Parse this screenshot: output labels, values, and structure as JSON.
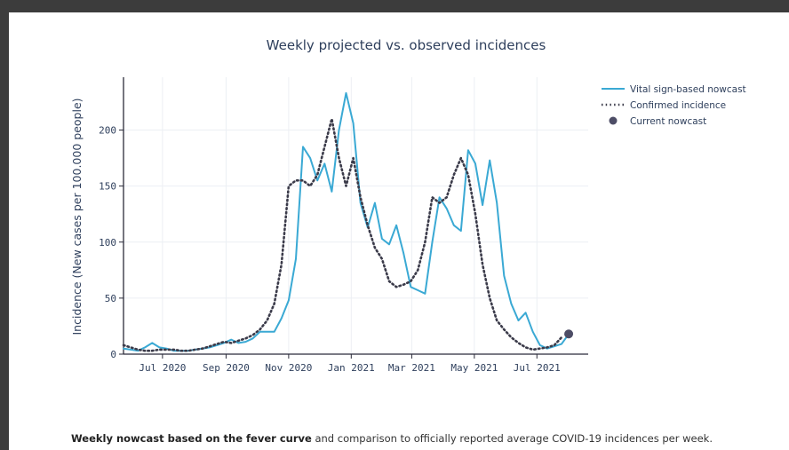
{
  "chart_data": {
    "type": "line",
    "title": "Weekly projected vs. observed incidences",
    "xlabel": "",
    "ylabel": "Incidence (New cases per 100.000 people)",
    "ylim": [
      0,
      240
    ],
    "y_ticks": [
      0,
      50,
      100,
      150,
      200
    ],
    "x_tick_labels": [
      "Jul 2020",
      "Sep 2020",
      "Nov 2020",
      "Jan 2021",
      "Mar 2021",
      "May 2021",
      "Jul 2021"
    ],
    "grid": true,
    "legend_position": "top-right",
    "series": [
      {
        "name": "Vital sign-based nowcast",
        "style": "solid",
        "color": "#3aa9d4",
        "x": [
          "2020-05-24",
          "2020-05-31",
          "2020-06-07",
          "2020-06-14",
          "2020-06-21",
          "2020-06-28",
          "2020-07-05",
          "2020-07-12",
          "2020-07-19",
          "2020-07-26",
          "2020-08-02",
          "2020-08-09",
          "2020-08-16",
          "2020-08-23",
          "2020-08-30",
          "2020-09-06",
          "2020-09-13",
          "2020-09-20",
          "2020-09-27",
          "2020-10-04",
          "2020-10-11",
          "2020-10-18",
          "2020-10-25",
          "2020-11-01",
          "2020-11-08",
          "2020-11-15",
          "2020-11-22",
          "2020-11-29",
          "2020-12-06",
          "2020-12-13",
          "2020-12-20",
          "2020-12-27",
          "2021-01-03",
          "2021-01-10",
          "2021-01-17",
          "2021-01-24",
          "2021-01-31",
          "2021-02-07",
          "2021-02-14",
          "2021-02-21",
          "2021-02-28",
          "2021-03-07",
          "2021-03-14",
          "2021-03-21",
          "2021-03-28",
          "2021-04-04",
          "2021-04-11",
          "2021-04-18",
          "2021-04-25",
          "2021-05-02",
          "2021-05-09",
          "2021-05-16",
          "2021-05-23",
          "2021-05-30",
          "2021-06-06",
          "2021-06-13",
          "2021-06-20",
          "2021-06-27",
          "2021-07-04",
          "2021-07-11",
          "2021-07-18",
          "2021-07-25",
          "2021-08-01"
        ],
        "values": [
          5,
          4,
          3,
          6,
          10,
          6,
          5,
          3,
          3,
          3,
          4,
          5,
          6,
          8,
          10,
          13,
          10,
          11,
          14,
          20,
          20,
          20,
          32,
          48,
          85,
          185,
          175,
          155,
          170,
          145,
          200,
          233,
          206,
          135,
          113,
          135,
          103,
          98,
          115,
          90,
          60,
          57,
          54,
          100,
          140,
          130,
          115,
          110,
          182,
          170,
          133,
          173,
          135,
          70,
          45,
          30,
          37,
          20,
          8,
          5,
          7,
          9,
          18
        ]
      },
      {
        "name": "Confirmed incidence",
        "style": "dotted",
        "color": "#3b3b4a",
        "x": [
          "2020-05-24",
          "2020-05-31",
          "2020-06-07",
          "2020-06-14",
          "2020-06-21",
          "2020-06-28",
          "2020-07-05",
          "2020-07-12",
          "2020-07-19",
          "2020-07-26",
          "2020-08-02",
          "2020-08-09",
          "2020-08-16",
          "2020-08-23",
          "2020-08-30",
          "2020-09-06",
          "2020-09-13",
          "2020-09-20",
          "2020-09-27",
          "2020-10-04",
          "2020-10-11",
          "2020-10-18",
          "2020-10-25",
          "2020-11-01",
          "2020-11-08",
          "2020-11-15",
          "2020-11-22",
          "2020-11-29",
          "2020-12-06",
          "2020-12-13",
          "2020-12-20",
          "2020-12-27",
          "2021-01-03",
          "2021-01-10",
          "2021-01-17",
          "2021-01-24",
          "2021-01-31",
          "2021-02-07",
          "2021-02-14",
          "2021-02-21",
          "2021-02-28",
          "2021-03-07",
          "2021-03-14",
          "2021-03-21",
          "2021-03-28",
          "2021-04-04",
          "2021-04-11",
          "2021-04-18",
          "2021-04-25",
          "2021-05-02",
          "2021-05-09",
          "2021-05-16",
          "2021-05-23",
          "2021-05-30",
          "2021-06-06",
          "2021-06-13",
          "2021-06-20",
          "2021-06-27",
          "2021-07-04",
          "2021-07-11",
          "2021-07-18",
          "2021-07-25"
        ],
        "values": [
          8,
          6,
          4,
          3,
          3,
          4,
          4,
          4,
          3,
          3,
          4,
          5,
          7,
          9,
          11,
          10,
          12,
          14,
          17,
          22,
          30,
          45,
          80,
          150,
          155,
          155,
          150,
          160,
          185,
          210,
          175,
          150,
          175,
          140,
          115,
          95,
          85,
          65,
          60,
          62,
          65,
          75,
          100,
          140,
          135,
          140,
          160,
          175,
          160,
          125,
          80,
          50,
          30,
          22,
          15,
          10,
          6,
          4,
          5,
          6,
          8,
          15
        ]
      },
      {
        "name": "Current nowcast",
        "style": "marker",
        "color": "#4d4d66",
        "x": [
          "2021-08-01"
        ],
        "values": [
          18
        ]
      }
    ]
  },
  "caption": {
    "bold": "Weekly nowcast based on the fever curve",
    "rest": " and comparison to officially reported average COVID-19 incidences per week."
  }
}
